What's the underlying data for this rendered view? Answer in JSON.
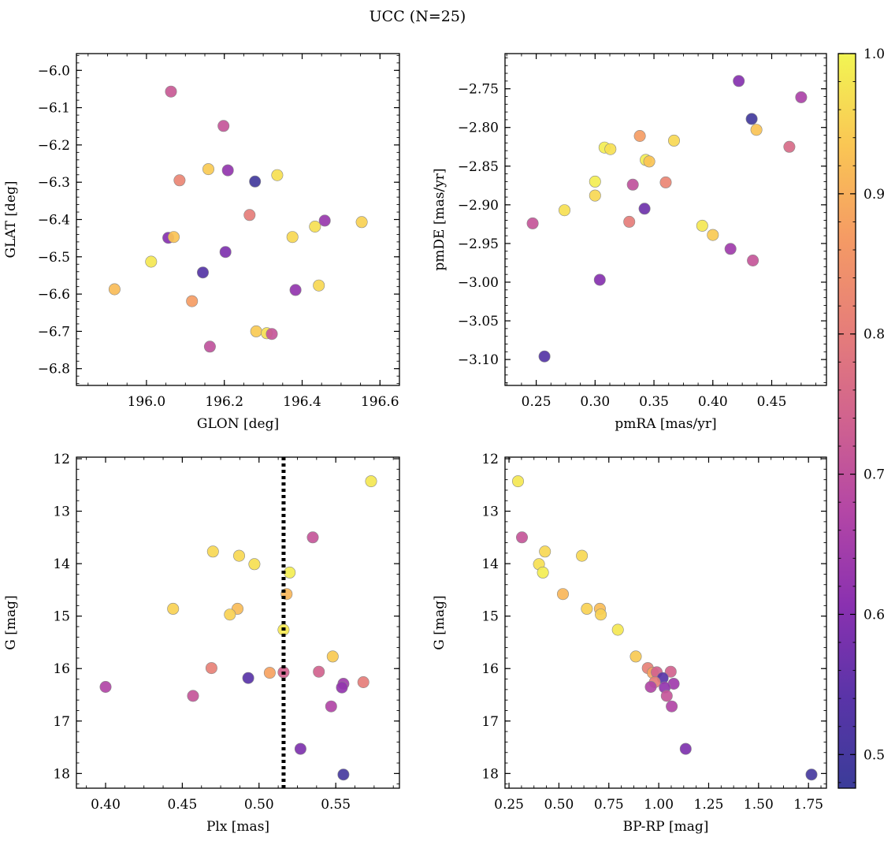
{
  "title": "UCC (N=25)",
  "colorbar": {
    "range": [
      0.476,
      1.0
    ],
    "ticks": [
      0.5,
      0.6,
      0.7,
      0.8,
      0.9,
      1.0
    ],
    "tick_labels": [
      "0.5",
      "0.6",
      "0.7",
      "0.8",
      "0.9",
      "1.0"
    ],
    "colormap": "plasma"
  },
  "chart_data": [
    {
      "type": "scatter",
      "xlabel": "GLON [deg]",
      "ylabel": "GLAT [deg]",
      "xlim": [
        195.82,
        196.65
      ],
      "ylim": [
        -6.845,
        -5.955
      ],
      "y_inverted": false,
      "xticks": [
        196.0,
        196.2,
        196.4,
        196.6
      ],
      "xtick_labels": [
        "196.0",
        "196.2",
        "196.4",
        "196.6"
      ],
      "yticks": [
        -6.0,
        -6.1,
        -6.2,
        -6.3,
        -6.4,
        -6.5,
        -6.6,
        -6.7,
        -6.8
      ],
      "ytick_labels": [
        "−6.0",
        "−6.1",
        "−6.2",
        "−6.3",
        "−6.4",
        "−6.5",
        "−6.6",
        "−6.7",
        "−6.8"
      ],
      "points": [
        {
          "x": 196.063,
          "y": -6.057,
          "c": 0.72
        },
        {
          "x": 196.198,
          "y": -6.149,
          "c": 0.71
        },
        {
          "x": 196.159,
          "y": -6.265,
          "c": 0.94
        },
        {
          "x": 196.209,
          "y": -6.268,
          "c": 0.62
        },
        {
          "x": 196.085,
          "y": -6.295,
          "c": 0.82
        },
        {
          "x": 196.279,
          "y": -6.298,
          "c": 0.49
        },
        {
          "x": 196.336,
          "y": -6.281,
          "c": 0.97
        },
        {
          "x": 196.265,
          "y": -6.388,
          "c": 0.8
        },
        {
          "x": 196.458,
          "y": -6.403,
          "c": 0.63
        },
        {
          "x": 196.433,
          "y": -6.419,
          "c": 0.97
        },
        {
          "x": 196.553,
          "y": -6.407,
          "c": 0.95
        },
        {
          "x": 196.056,
          "y": -6.449,
          "c": 0.6
        },
        {
          "x": 196.07,
          "y": -6.447,
          "c": 0.93
        },
        {
          "x": 196.375,
          "y": -6.447,
          "c": 0.96
        },
        {
          "x": 196.203,
          "y": -6.487,
          "c": 0.59
        },
        {
          "x": 196.012,
          "y": -6.513,
          "c": 0.98
        },
        {
          "x": 196.145,
          "y": -6.542,
          "c": 0.53
        },
        {
          "x": 195.918,
          "y": -6.587,
          "c": 0.92
        },
        {
          "x": 196.383,
          "y": -6.589,
          "c": 0.62
        },
        {
          "x": 196.443,
          "y": -6.577,
          "c": 0.96
        },
        {
          "x": 196.117,
          "y": -6.619,
          "c": 0.87
        },
        {
          "x": 196.282,
          "y": -6.7,
          "c": 0.94
        },
        {
          "x": 196.309,
          "y": -6.705,
          "c": 0.97
        },
        {
          "x": 196.322,
          "y": -6.707,
          "c": 0.71
        },
        {
          "x": 196.163,
          "y": -6.741,
          "c": 0.7
        }
      ]
    },
    {
      "type": "scatter",
      "xlabel": "pmRA [mas/yr]",
      "ylabel": "pmDE [mas/yr]",
      "xlim": [
        0.2235,
        0.4965
      ],
      "ylim": [
        -3.1335,
        -2.7045
      ],
      "y_inverted": false,
      "xticks": [
        0.25,
        0.3,
        0.35,
        0.4,
        0.45
      ],
      "xtick_labels": [
        "0.25",
        "0.30",
        "0.35",
        "0.40",
        "0.45"
      ],
      "yticks": [
        -2.75,
        -2.8,
        -2.85,
        -2.9,
        -2.95,
        -3.0,
        -3.05,
        -3.1
      ],
      "ytick_labels": [
        "−2.75",
        "−2.80",
        "−2.85",
        "−2.90",
        "−2.95",
        "−3.00",
        "−3.05",
        "−3.10"
      ],
      "points": [
        {
          "x": 0.422,
          "y": -2.74,
          "c": 0.6
        },
        {
          "x": 0.475,
          "y": -2.761,
          "c": 0.66
        },
        {
          "x": 0.433,
          "y": -2.789,
          "c": 0.49
        },
        {
          "x": 0.437,
          "y": -2.803,
          "c": 0.93
        },
        {
          "x": 0.338,
          "y": -2.811,
          "c": 0.87
        },
        {
          "x": 0.367,
          "y": -2.817,
          "c": 0.96
        },
        {
          "x": 0.465,
          "y": -2.825,
          "c": 0.76
        },
        {
          "x": 0.308,
          "y": -2.826,
          "c": 0.99
        },
        {
          "x": 0.313,
          "y": -2.828,
          "c": 0.97
        },
        {
          "x": 0.343,
          "y": -2.842,
          "c": 0.99
        },
        {
          "x": 0.346,
          "y": -2.844,
          "c": 0.93
        },
        {
          "x": 0.3,
          "y": -2.87,
          "c": 0.99
        },
        {
          "x": 0.36,
          "y": -2.871,
          "c": 0.82
        },
        {
          "x": 0.332,
          "y": -2.874,
          "c": 0.7
        },
        {
          "x": 0.3,
          "y": -2.888,
          "c": 0.96
        },
        {
          "x": 0.274,
          "y": -2.907,
          "c": 0.97
        },
        {
          "x": 0.342,
          "y": -2.905,
          "c": 0.57
        },
        {
          "x": 0.329,
          "y": -2.922,
          "c": 0.8
        },
        {
          "x": 0.247,
          "y": -2.924,
          "c": 0.71
        },
        {
          "x": 0.391,
          "y": -2.927,
          "c": 0.98
        },
        {
          "x": 0.4,
          "y": -2.939,
          "c": 0.94
        },
        {
          "x": 0.415,
          "y": -2.957,
          "c": 0.64
        },
        {
          "x": 0.434,
          "y": -2.972,
          "c": 0.71
        },
        {
          "x": 0.304,
          "y": -2.997,
          "c": 0.6
        },
        {
          "x": 0.257,
          "y": -3.096,
          "c": 0.53
        }
      ]
    },
    {
      "type": "scatter",
      "xlabel": "Plx [mas]",
      "ylabel": "G [mag]",
      "xlim": [
        0.381,
        0.5915
      ],
      "ylim": [
        11.97,
        18.28
      ],
      "y_inverted": true,
      "vline": {
        "x": 0.516,
        "style": "dotted",
        "color": "#000000"
      },
      "xticks": [
        0.4,
        0.45,
        0.5,
        0.55
      ],
      "xtick_labels": [
        "0.40",
        "0.45",
        "0.50",
        "0.55"
      ],
      "yticks": [
        12,
        13,
        14,
        15,
        16,
        17,
        18
      ],
      "ytick_labels": [
        "12",
        "13",
        "14",
        "15",
        "16",
        "17",
        "18"
      ],
      "points": [
        {
          "x": 0.573,
          "y": 12.43,
          "c": 0.98
        },
        {
          "x": 0.535,
          "y": 13.5,
          "c": 0.71
        },
        {
          "x": 0.47,
          "y": 13.77,
          "c": 0.96
        },
        {
          "x": 0.487,
          "y": 13.85,
          "c": 0.96
        },
        {
          "x": 0.497,
          "y": 14.01,
          "c": 0.97
        },
        {
          "x": 0.52,
          "y": 14.17,
          "c": 0.99
        },
        {
          "x": 0.518,
          "y": 14.58,
          "c": 0.91
        },
        {
          "x": 0.444,
          "y": 14.86,
          "c": 0.95
        },
        {
          "x": 0.486,
          "y": 14.86,
          "c": 0.92
        },
        {
          "x": 0.481,
          "y": 14.97,
          "c": 0.95
        },
        {
          "x": 0.516,
          "y": 15.26,
          "c": 0.98
        },
        {
          "x": 0.548,
          "y": 15.77,
          "c": 0.94
        },
        {
          "x": 0.469,
          "y": 15.99,
          "c": 0.81
        },
        {
          "x": 0.507,
          "y": 16.08,
          "c": 0.88
        },
        {
          "x": 0.516,
          "y": 16.07,
          "c": 0.74
        },
        {
          "x": 0.539,
          "y": 16.06,
          "c": 0.74
        },
        {
          "x": 0.493,
          "y": 16.18,
          "c": 0.54
        },
        {
          "x": 0.568,
          "y": 16.26,
          "c": 0.8
        },
        {
          "x": 0.555,
          "y": 16.29,
          "c": 0.64
        },
        {
          "x": 0.554,
          "y": 16.36,
          "c": 0.62
        },
        {
          "x": 0.4,
          "y": 16.35,
          "c": 0.67
        },
        {
          "x": 0.457,
          "y": 16.52,
          "c": 0.71
        },
        {
          "x": 0.547,
          "y": 16.72,
          "c": 0.67
        },
        {
          "x": 0.527,
          "y": 17.53,
          "c": 0.59
        },
        {
          "x": 0.555,
          "y": 18.02,
          "c": 0.5
        }
      ]
    },
    {
      "type": "scatter",
      "xlabel": "BP-RP [mag]",
      "ylabel": "G [mag]",
      "xlim": [
        0.23,
        1.84
      ],
      "ylim": [
        11.97,
        18.28
      ],
      "y_inverted": true,
      "xticks": [
        0.25,
        0.5,
        0.75,
        1.0,
        1.25,
        1.5,
        1.75
      ],
      "xtick_labels": [
        "0.25",
        "0.50",
        "0.75",
        "1.00",
        "1.25",
        "1.50",
        "1.75"
      ],
      "yticks": [
        12,
        13,
        14,
        15,
        16,
        17,
        18
      ],
      "ytick_labels": [
        "12",
        "13",
        "14",
        "15",
        "16",
        "17",
        "18"
      ],
      "points": [
        {
          "x": 0.295,
          "y": 12.43,
          "c": 0.98
        },
        {
          "x": 0.315,
          "y": 13.5,
          "c": 0.71
        },
        {
          "x": 0.43,
          "y": 13.77,
          "c": 0.96
        },
        {
          "x": 0.615,
          "y": 13.85,
          "c": 0.96
        },
        {
          "x": 0.4,
          "y": 14.01,
          "c": 0.97
        },
        {
          "x": 0.42,
          "y": 14.17,
          "c": 0.99
        },
        {
          "x": 0.52,
          "y": 14.58,
          "c": 0.91
        },
        {
          "x": 0.64,
          "y": 14.86,
          "c": 0.95
        },
        {
          "x": 0.705,
          "y": 14.86,
          "c": 0.92
        },
        {
          "x": 0.71,
          "y": 14.97,
          "c": 0.95
        },
        {
          "x": 0.795,
          "y": 15.26,
          "c": 0.98
        },
        {
          "x": 0.885,
          "y": 15.77,
          "c": 0.94
        },
        {
          "x": 0.945,
          "y": 15.99,
          "c": 0.81
        },
        {
          "x": 0.97,
          "y": 16.08,
          "c": 0.88
        },
        {
          "x": 0.99,
          "y": 16.07,
          "c": 0.74
        },
        {
          "x": 1.06,
          "y": 16.06,
          "c": 0.74
        },
        {
          "x": 1.02,
          "y": 16.18,
          "c": 0.54
        },
        {
          "x": 0.98,
          "y": 16.26,
          "c": 0.8
        },
        {
          "x": 1.075,
          "y": 16.29,
          "c": 0.64
        },
        {
          "x": 1.03,
          "y": 16.36,
          "c": 0.62
        },
        {
          "x": 0.96,
          "y": 16.35,
          "c": 0.67
        },
        {
          "x": 1.04,
          "y": 16.52,
          "c": 0.71
        },
        {
          "x": 1.065,
          "y": 16.72,
          "c": 0.67
        },
        {
          "x": 1.135,
          "y": 17.53,
          "c": 0.59
        },
        {
          "x": 1.765,
          "y": 18.02,
          "c": 0.5
        }
      ]
    }
  ]
}
